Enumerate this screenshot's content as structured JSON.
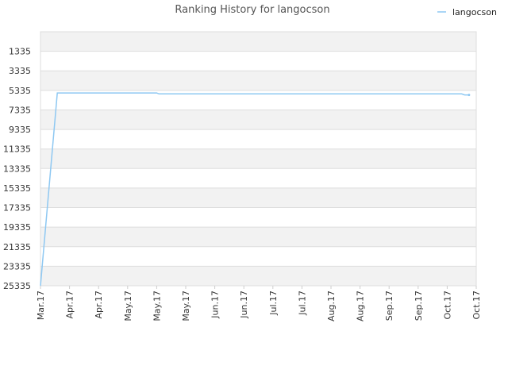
{
  "chart_data": {
    "type": "line",
    "title": "Ranking History for langocson",
    "xlabel": "",
    "ylabel": "",
    "y_inverted": true,
    "ylim": [
      25335,
      -665
    ],
    "y_ticks": [
      1335,
      3335,
      5335,
      7335,
      9335,
      11335,
      13335,
      15335,
      17335,
      19335,
      21335,
      23335,
      25335
    ],
    "x_ticks": [
      "Mar.17",
      "Apr.17",
      "Apr.17",
      "May.17",
      "May.17",
      "May.17",
      "Jun.17",
      "Jun.17",
      "Jul.17",
      "Jul.17",
      "Aug.17",
      "Aug.17",
      "Sep.17",
      "Sep.17",
      "Oct.17",
      "Oct.17"
    ],
    "grid": true,
    "legend": "top-right",
    "series": [
      {
        "name": "langocson",
        "color": "#8ec8f2",
        "x": [
          0.0,
          0.58,
          4.0,
          4.08,
          14.5,
          14.6,
          14.75
        ],
        "y": [
          25335,
          5600,
          5600,
          5700,
          5700,
          5800,
          5800
        ]
      }
    ]
  }
}
